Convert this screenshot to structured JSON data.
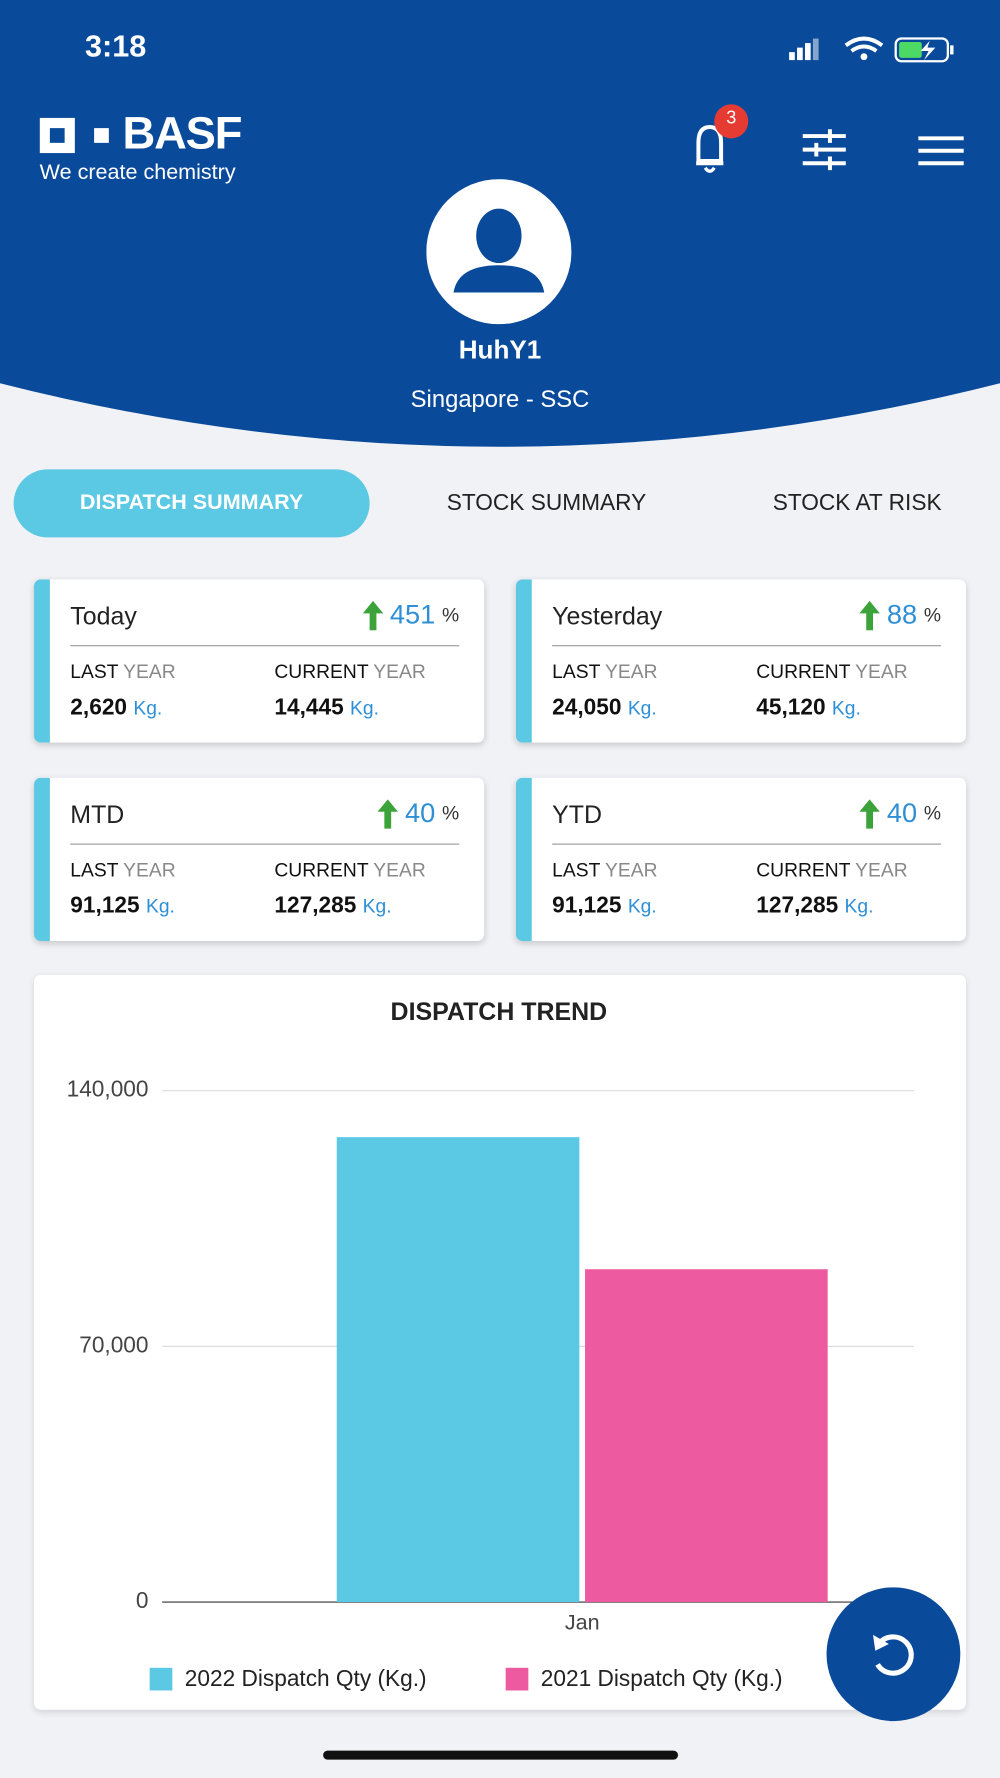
{
  "status_bar": {
    "time": "3:18"
  },
  "header": {
    "logo": "BASF",
    "tagline": "We create chemistry",
    "notification_count": 3,
    "user_name": "HuhY1",
    "location": "Singapore - SSC"
  },
  "tabs": [
    "DISPATCH SUMMARY",
    "STOCK SUMMARY",
    "STOCK AT RISK"
  ],
  "cards": [
    {
      "title": "Today",
      "change": 451,
      "change_unit": "%",
      "last_year": [
        "LAST",
        "YEAR"
      ],
      "current_year": [
        "CURRENT",
        "YEAR"
      ],
      "last_value": "2,620",
      "current_value": "14,445",
      "last_unit": "Kg.",
      "current_unit": "Kg."
    },
    {
      "title": "Yesterday",
      "change": 88,
      "change_unit": "%",
      "last_year": [
        "LAST",
        "YEAR"
      ],
      "current_year": [
        "CURRENT",
        "YEAR"
      ],
      "last_value": "24,050",
      "current_value": "45,120",
      "last_unit": "Kg.",
      "current_unit": "Kg."
    },
    {
      "title": "MTD",
      "change": 40,
      "change_unit": "%",
      "last_year": [
        "LAST",
        "YEAR"
      ],
      "current_year": [
        "CURRENT",
        "YEAR"
      ],
      "last_value": "91,125",
      "current_value": "127,285",
      "last_unit": "Kg.",
      "current_unit": "Kg."
    },
    {
      "title": "YTD",
      "change": 40,
      "change_unit": "%",
      "last_year": [
        "LAST",
        "YEAR"
      ],
      "current_year": [
        "CURRENT",
        "YEAR"
      ],
      "last_value": "91,125",
      "current_value": "127,285",
      "last_unit": "Kg.",
      "current_unit": "Kg."
    }
  ],
  "chart_data": {
    "type": "bar",
    "title": "DISPATCH TREND",
    "categories": [
      "Jan"
    ],
    "series": [
      {
        "name": "2022 Dispatch Qty (Kg.)",
        "color": "#5bc8e4",
        "values": [
          127285
        ]
      },
      {
        "name": "2021 Dispatch Qty (Kg.)",
        "color": "#ee5aa0",
        "values": [
          91125
        ]
      }
    ],
    "ylim": [
      0,
      140000
    ],
    "yticks": [
      0,
      {
        "value": 70000,
        "label": "70,000"
      },
      {
        "value": 140000,
        "label": "140,000"
      }
    ],
    "grid": true
  }
}
